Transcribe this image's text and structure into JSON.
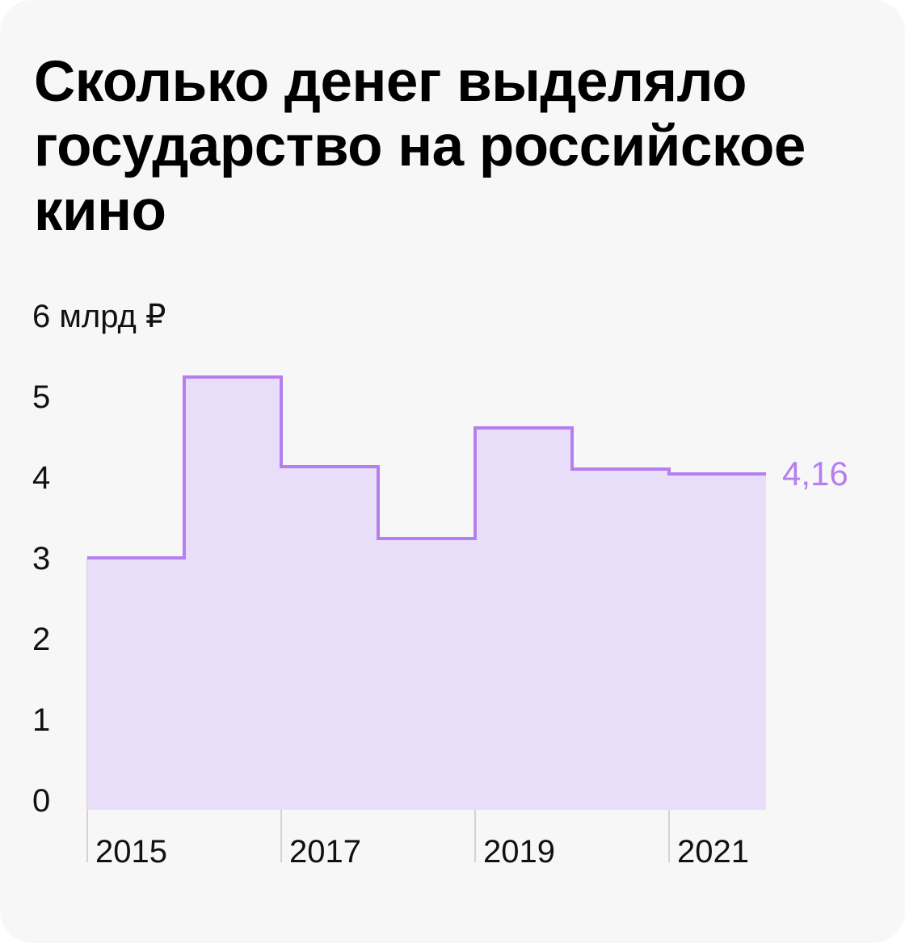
{
  "header": {
    "title": "Сколько денег выделяло государство на российское кино"
  },
  "colors": {
    "line": "#b57ff0",
    "fill": "#e9defa",
    "grid": "#c9c6cf",
    "label": "#b57ff0"
  },
  "chart_data": {
    "type": "area",
    "title": "Сколько денег выделяло государство на российское кино",
    "ylabel": "6 млрд ₽",
    "xlabel": "",
    "ylim": [
      0,
      6
    ],
    "yticks": [
      "0",
      "1",
      "2",
      "3",
      "4",
      "5"
    ],
    "x": [
      2015,
      2016,
      2017,
      2018,
      2019,
      2020,
      2021
    ],
    "values": [
      3.12,
      5.36,
      4.25,
      3.36,
      4.73,
      4.22,
      4.16
    ],
    "xtick_labels": [
      "2015",
      "2017",
      "2019",
      "2021"
    ],
    "last_value_label": "4,16",
    "step": true,
    "grid": false
  }
}
